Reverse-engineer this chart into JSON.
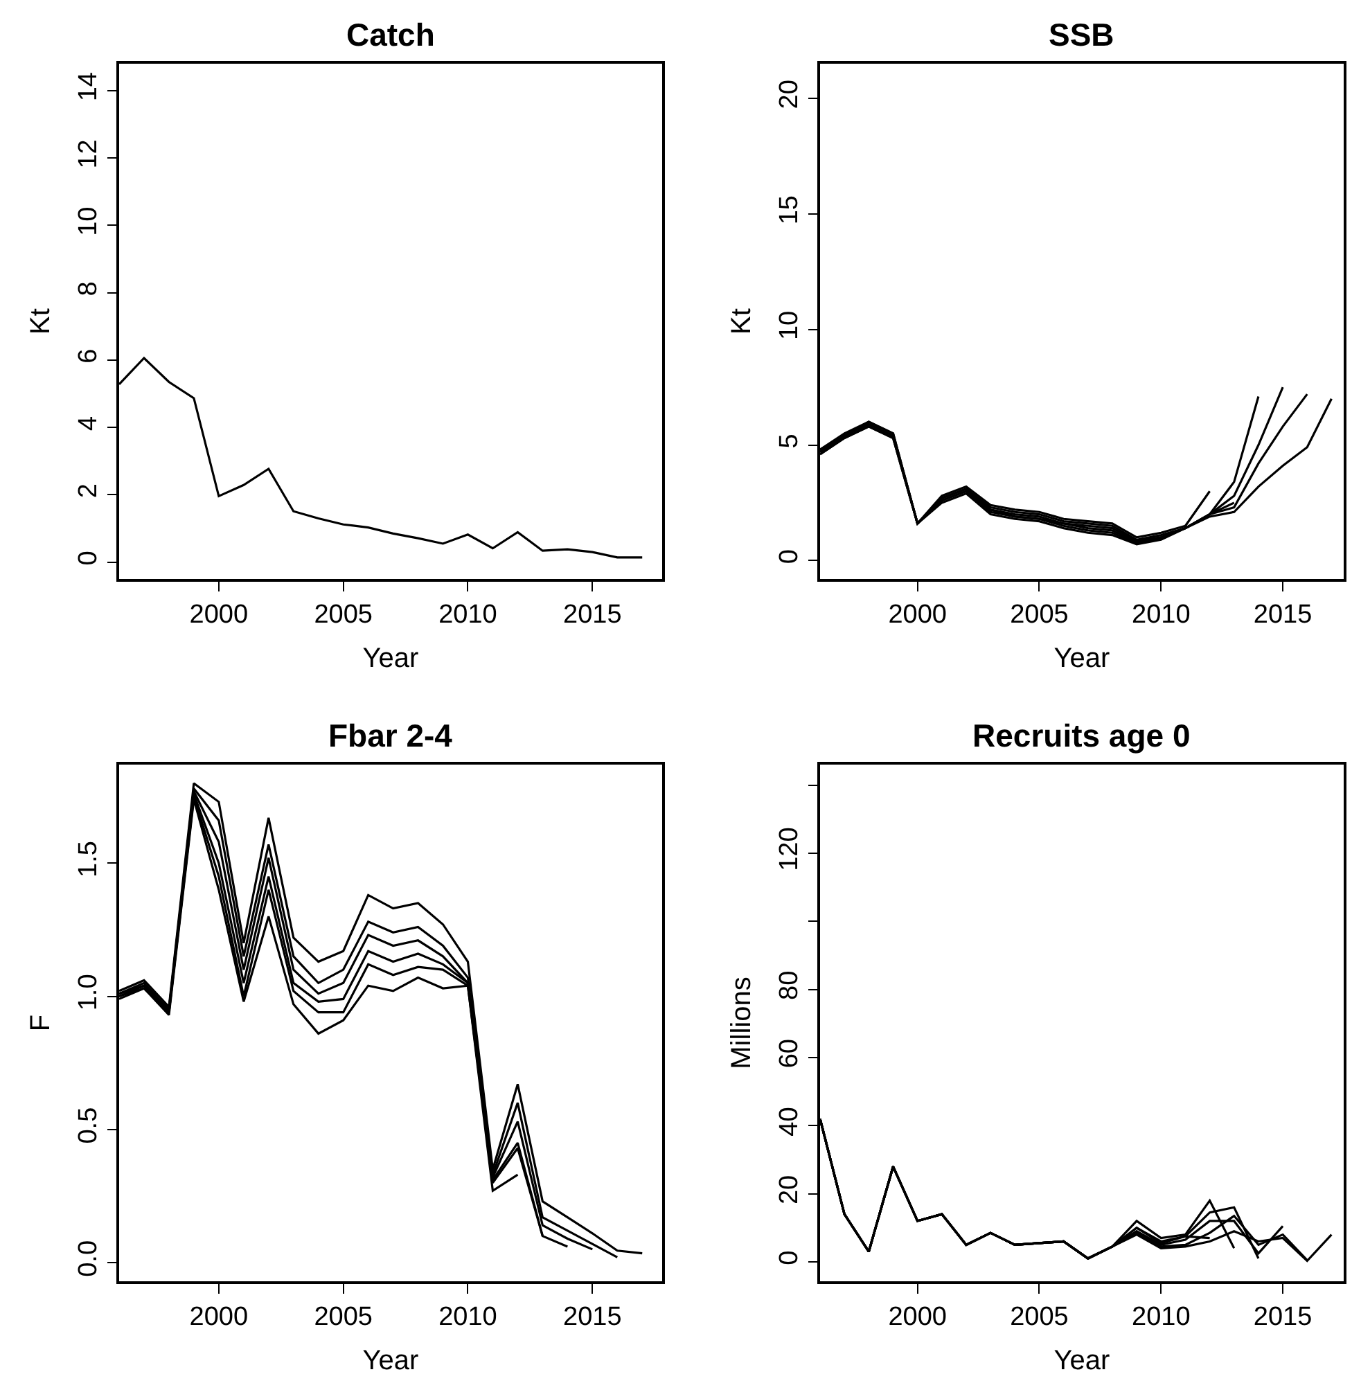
{
  "chart_data": [
    {
      "type": "line",
      "title": "Catch",
      "xlabel": "Year",
      "ylabel": "Kt",
      "x": [
        1996,
        1997,
        1998,
        1999,
        2000,
        2001,
        2002,
        2003,
        2004,
        2005,
        2006,
        2007,
        2008,
        2009,
        2010,
        2011,
        2012,
        2013,
        2014,
        2015,
        2016,
        2017
      ],
      "xlim": [
        1996,
        2017.8
      ],
      "xticks": [
        2000,
        2005,
        2010,
        2015
      ],
      "ylim": [
        -0.5,
        14.8
      ],
      "yticks": [
        0,
        2,
        4,
        6,
        8,
        10,
        12,
        14
      ],
      "series": [
        {
          "color": "#000000",
          "values": [
            5.28,
            6.06,
            5.35,
            4.87,
            1.96,
            2.29,
            2.77,
            1.51,
            1.3,
            1.12,
            1.03,
            0.85,
            0.71,
            0.55,
            0.82,
            0.41,
            0.89,
            0.34,
            0.38,
            0.3,
            0.14,
            0.14
          ]
        }
      ]
    },
    {
      "type": "line",
      "title": "SSB",
      "xlabel": "Year",
      "ylabel": "Kt",
      "xlim": [
        1996,
        2017.5
      ],
      "xticks": [
        2000,
        2005,
        2010,
        2015
      ],
      "ylim": [
        -0.8,
        21.5
      ],
      "yticks": [
        0,
        5,
        10,
        15,
        20
      ],
      "series": [
        {
          "color": "#000000",
          "x": [
            1996,
            1997,
            1998,
            1999,
            2000,
            2001,
            2002,
            2003,
            2004,
            2005,
            2006,
            2007,
            2008,
            2009,
            2010,
            2011,
            2012,
            2013,
            2014,
            2015,
            2016,
            2017
          ],
          "values": [
            4.6,
            5.3,
            5.8,
            5.3,
            1.6,
            2.5,
            2.9,
            2.0,
            1.8,
            1.7,
            1.4,
            1.2,
            1.1,
            0.7,
            0.9,
            1.4,
            1.9,
            2.1,
            3.2,
            4.1,
            4.9,
            7.0
          ]
        },
        {
          "color": "#000000",
          "x": [
            1996,
            1997,
            1998,
            1999,
            2000,
            2001,
            2002,
            2003,
            2004,
            2005,
            2006,
            2007,
            2008,
            2009,
            2010,
            2011,
            2012,
            2013,
            2014,
            2015,
            2016
          ],
          "values": [
            4.6,
            5.3,
            5.8,
            5.3,
            1.6,
            2.6,
            3.0,
            2.1,
            1.9,
            1.8,
            1.5,
            1.3,
            1.2,
            0.75,
            0.95,
            1.4,
            2.0,
            2.3,
            4.2,
            5.8,
            7.2
          ]
        },
        {
          "color": "#000000",
          "x": [
            1996,
            1997,
            1998,
            1999,
            2000,
            2001,
            2002,
            2003,
            2004,
            2005,
            2006,
            2007,
            2008,
            2009,
            2010,
            2011,
            2012,
            2013,
            2014,
            2015
          ],
          "values": [
            4.7,
            5.4,
            5.9,
            5.4,
            1.6,
            2.6,
            3.0,
            2.2,
            1.9,
            1.8,
            1.6,
            1.4,
            1.3,
            0.8,
            1.0,
            1.4,
            2.0,
            2.8,
            5.0,
            7.5
          ]
        },
        {
          "color": "#000000",
          "x": [
            1996,
            1997,
            1998,
            1999,
            2000,
            2001,
            2002,
            2003,
            2004,
            2005,
            2006,
            2007,
            2008,
            2009,
            2010,
            2011,
            2012,
            2013,
            2014
          ],
          "values": [
            4.7,
            5.4,
            5.9,
            5.4,
            1.6,
            2.7,
            3.1,
            2.2,
            2.0,
            1.9,
            1.6,
            1.5,
            1.4,
            0.85,
            1.0,
            1.4,
            2.0,
            3.4,
            7.1
          ]
        },
        {
          "color": "#000000",
          "x": [
            1996,
            1997,
            1998,
            1999,
            2000,
            2001,
            2002,
            2003,
            2004,
            2005,
            2006,
            2007,
            2008,
            2009,
            2010,
            2011,
            2012,
            2013
          ],
          "values": [
            4.8,
            5.4,
            6.0,
            5.5,
            1.6,
            2.7,
            3.1,
            2.3,
            2.1,
            2.0,
            1.7,
            1.6,
            1.5,
            0.9,
            1.1,
            1.4,
            2.0,
            2.5
          ]
        },
        {
          "color": "#000000",
          "x": [
            1996,
            1997,
            1998,
            1999,
            2000,
            2001,
            2002,
            2003,
            2004,
            2005,
            2006,
            2007,
            2008,
            2009,
            2010,
            2011,
            2012
          ],
          "values": [
            4.8,
            5.5,
            6.0,
            5.5,
            1.6,
            2.8,
            3.2,
            2.4,
            2.2,
            2.1,
            1.8,
            1.7,
            1.6,
            1.0,
            1.2,
            1.5,
            3.0
          ]
        }
      ]
    },
    {
      "type": "line",
      "title": "Fbar 2-4",
      "xlabel": "Year",
      "ylabel": "F",
      "xlim": [
        1996,
        2017.8
      ],
      "xticks": [
        2000,
        2005,
        2010,
        2015
      ],
      "ylim": [
        -0.07,
        1.87
      ],
      "yticks": [
        {
          "value": 0,
          "label": "0.0"
        },
        0.5,
        {
          "value": 1,
          "label": "1.0"
        },
        1.5
      ],
      "series": [
        {
          "color": "#000000",
          "x": [
            1996,
            1997,
            1998,
            1999,
            2000,
            2001,
            2002,
            2003,
            2004,
            2005,
            2006,
            2007,
            2008,
            2009,
            2010,
            2011,
            2012,
            2013,
            2014,
            2015,
            2016,
            2017
          ],
          "values": [
            1.02,
            1.06,
            0.96,
            1.8,
            1.73,
            1.2,
            1.67,
            1.22,
            1.13,
            1.17,
            1.38,
            1.33,
            1.35,
            1.27,
            1.13,
            0.35,
            0.67,
            0.23,
            0.17,
            0.11,
            0.045,
            0.035
          ]
        },
        {
          "color": "#000000",
          "x": [
            1996,
            1997,
            1998,
            1999,
            2000,
            2001,
            2002,
            2003,
            2004,
            2005,
            2006,
            2007,
            2008,
            2009,
            2010,
            2011,
            2012,
            2013,
            2014,
            2015,
            2016
          ],
          "values": [
            1.01,
            1.05,
            0.95,
            1.78,
            1.66,
            1.15,
            1.57,
            1.15,
            1.05,
            1.1,
            1.28,
            1.24,
            1.26,
            1.19,
            1.07,
            0.33,
            0.6,
            0.17,
            0.12,
            0.07,
            0.02
          ]
        },
        {
          "color": "#000000",
          "x": [
            1996,
            1997,
            1998,
            1999,
            2000,
            2001,
            2002,
            2003,
            2004,
            2005,
            2006,
            2007,
            2008,
            2009,
            2010,
            2011,
            2012,
            2013,
            2014,
            2015
          ],
          "values": [
            1.01,
            1.04,
            0.95,
            1.77,
            1.58,
            1.1,
            1.52,
            1.1,
            1.01,
            1.05,
            1.23,
            1.19,
            1.21,
            1.15,
            1.05,
            0.32,
            0.53,
            0.14,
            0.09,
            0.05
          ]
        },
        {
          "color": "#000000",
          "x": [
            1996,
            1997,
            1998,
            1999,
            2000,
            2001,
            2002,
            2003,
            2004,
            2005,
            2006,
            2007,
            2008,
            2009,
            2010,
            2011,
            2012,
            2013,
            2014
          ],
          "values": [
            1.0,
            1.04,
            0.94,
            1.76,
            1.5,
            1.05,
            1.45,
            1.05,
            0.98,
            0.99,
            1.17,
            1.13,
            1.16,
            1.12,
            1.05,
            0.31,
            0.45,
            0.1,
            0.06
          ]
        },
        {
          "color": "#000000",
          "x": [
            1996,
            1997,
            1998,
            1999,
            2000,
            2001,
            2002,
            2003,
            2004,
            2005,
            2006,
            2007,
            2008,
            2009,
            2010,
            2011,
            2012,
            2013
          ],
          "values": [
            1.0,
            1.03,
            0.94,
            1.75,
            1.45,
            1.0,
            1.4,
            1.02,
            0.94,
            0.94,
            1.12,
            1.08,
            1.11,
            1.1,
            1.04,
            0.3,
            0.43,
            0.1
          ]
        },
        {
          "color": "#000000",
          "x": [
            1996,
            1997,
            1998,
            1999,
            2000,
            2001,
            2002,
            2003,
            2004,
            2005,
            2006,
            2007,
            2008,
            2009,
            2010,
            2011,
            2012
          ],
          "values": [
            0.99,
            1.03,
            0.93,
            1.74,
            1.4,
            0.98,
            1.3,
            0.97,
            0.86,
            0.91,
            1.04,
            1.02,
            1.07,
            1.03,
            1.04,
            0.27,
            0.33
          ]
        }
      ]
    },
    {
      "type": "line",
      "title": "Recruits age 0",
      "xlabel": "Year",
      "ylabel": "Millions",
      "xlim": [
        1996,
        2017.5
      ],
      "xticks": [
        2000,
        2005,
        2010,
        2015
      ],
      "ylim": [
        -5.7,
        146
      ],
      "yticks": [
        0,
        20,
        40,
        60,
        80,
        {
          "value": 100,
          "label": null
        },
        120,
        {
          "value": 140,
          "label": null
        }
      ],
      "series": [
        {
          "color": "#000000",
          "x": [
            1996,
            1997,
            1998,
            1999,
            2000,
            2001,
            2002,
            2003,
            2004,
            2005,
            2006,
            2007,
            2008,
            2009,
            2010,
            2011,
            2012,
            2013,
            2014,
            2015,
            2016,
            2017
          ],
          "values": [
            42,
            14,
            3,
            28,
            12,
            14,
            5,
            8.5,
            5,
            5.5,
            6,
            1,
            4.5,
            8,
            4,
            4.5,
            6,
            9,
            6,
            7,
            0.3,
            8
          ]
        },
        {
          "color": "#000000",
          "x": [
            1996,
            1997,
            1998,
            1999,
            2000,
            2001,
            2002,
            2003,
            2004,
            2005,
            2006,
            2007,
            2008,
            2009,
            2010,
            2011,
            2012,
            2013,
            2014,
            2015,
            2016
          ],
          "values": [
            42,
            14,
            3,
            28,
            12,
            14,
            5,
            8.5,
            5,
            5.5,
            6,
            1,
            4.5,
            8.5,
            4.5,
            5,
            8.5,
            13.5,
            5,
            8,
            0.5
          ]
        },
        {
          "color": "#000000",
          "x": [
            1996,
            1997,
            1998,
            1999,
            2000,
            2001,
            2002,
            2003,
            2004,
            2005,
            2006,
            2007,
            2008,
            2009,
            2010,
            2011,
            2012,
            2013,
            2014,
            2015
          ],
          "values": [
            42,
            14,
            3,
            28,
            12,
            14,
            5,
            8.5,
            5,
            5.5,
            6,
            1,
            4.5,
            9,
            5,
            6.5,
            12,
            12,
            2.5,
            10.5
          ]
        },
        {
          "color": "#000000",
          "x": [
            1996,
            1997,
            1998,
            1999,
            2000,
            2001,
            2002,
            2003,
            2004,
            2005,
            2006,
            2007,
            2008,
            2009,
            2010,
            2011,
            2012,
            2013,
            2014
          ],
          "values": [
            42,
            14,
            3,
            28,
            12,
            14,
            5,
            8.5,
            5,
            5.5,
            6,
            1,
            4.5,
            10,
            5.5,
            7.5,
            14.5,
            16,
            1
          ]
        },
        {
          "color": "#000000",
          "x": [
            1996,
            1997,
            1998,
            1999,
            2000,
            2001,
            2002,
            2003,
            2004,
            2005,
            2006,
            2007,
            2008,
            2009,
            2010,
            2011,
            2012,
            2013
          ],
          "values": [
            42,
            14,
            3,
            28,
            12,
            14,
            5,
            8.5,
            5,
            5.5,
            6,
            1,
            4.5,
            12,
            7,
            8,
            18,
            4
          ]
        },
        {
          "color": "#000000",
          "x": [
            1996,
            1997,
            1998,
            1999,
            2000,
            2001,
            2002,
            2003,
            2004,
            2005,
            2006,
            2007,
            2008,
            2009,
            2010,
            2011,
            2012
          ],
          "values": [
            42,
            14,
            3,
            28,
            12,
            14,
            5,
            8.5,
            5,
            5.5,
            6,
            1,
            4.5,
            10,
            6,
            7.5,
            7
          ]
        }
      ]
    }
  ]
}
